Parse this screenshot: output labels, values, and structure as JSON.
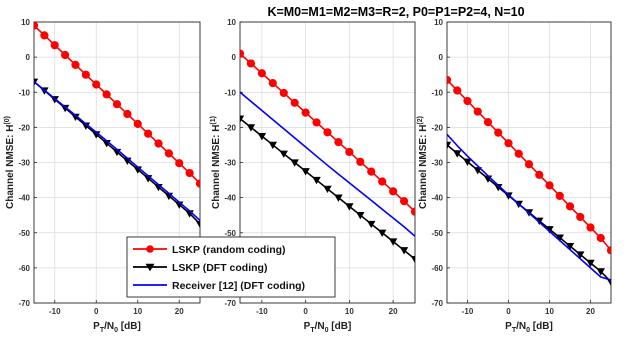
{
  "figure": {
    "title": "K=M0=M1=M2=M3=R=2, P0=P1=P2=4, N=10"
  },
  "legend": [
    {
      "label": "LSKP (random coding)",
      "color": "#ff0000",
      "marker": "circle"
    },
    {
      "label": "LSKP (DFT coding)",
      "color": "#000000",
      "marker": "triangle-down"
    },
    {
      "label": "Receiver [12] (DFT coding)",
      "color": "#0000ff",
      "marker": "none"
    }
  ],
  "chart_data": [
    {
      "type": "line",
      "title": "",
      "xlabel": "P_T/N_0 [dB]",
      "ylabel": "Channel NMSE: H^(0)",
      "ylabel_main": "Channel NMSE: H",
      "ylabel_sup": "(0)",
      "xlabel_main": "P",
      "xlabel_sub1": "T",
      "xlabel_mid": "/N",
      "xlabel_sub2": "0",
      "xlabel_tail": " [dB]",
      "xlim": [
        -15,
        25
      ],
      "ylim": [
        -70,
        10
      ],
      "xticks": [
        -10,
        0,
        10,
        20
      ],
      "yticks": [
        -70,
        -60,
        -50,
        -40,
        -30,
        -20,
        -10,
        0,
        10
      ],
      "grid": true,
      "x": [
        -15,
        -12.5,
        -10,
        -7.5,
        -5,
        -2.5,
        0,
        2.5,
        5,
        7.5,
        10,
        12.5,
        15,
        17.5,
        20,
        22.5,
        25
      ],
      "series": [
        {
          "name": "LSKP (random coding)",
          "color": "#ff0000",
          "marker": "circle",
          "values": [
            9,
            6.2,
            3.4,
            0.6,
            -2.2,
            -5,
            -7.8,
            -10.6,
            -13.4,
            -16.2,
            -19,
            -21.8,
            -24.6,
            -27.4,
            -30.2,
            -33,
            -36
          ]
        },
        {
          "name": "LSKP (DFT coding)",
          "color": "#000000",
          "marker": "triangle-down",
          "values": [
            -7,
            -9.5,
            -12,
            -14.5,
            -17,
            -19.5,
            -22,
            -24.5,
            -27,
            -29.5,
            -32,
            -34.5,
            -37,
            -39.5,
            -42,
            -44.5,
            -47.5
          ]
        },
        {
          "name": "Receiver [12] (DFT coding)",
          "color": "#0000ff",
          "marker": "none",
          "values": [
            -7,
            -9.4,
            -11.8,
            -14.2,
            -16.6,
            -19,
            -21.4,
            -23.8,
            -26.3,
            -28.8,
            -31.3,
            -33.8,
            -36.3,
            -38.8,
            -41.3,
            -43.8,
            -46.5
          ]
        }
      ]
    },
    {
      "type": "line",
      "title": "",
      "xlabel": "P_T/N_0 [dB]",
      "ylabel": "Channel NMSE: H^(1)",
      "ylabel_main": "Channel NMSE: H",
      "ylabel_sup": "(1)",
      "xlabel_main": "P",
      "xlabel_sub1": "T",
      "xlabel_mid": "/N",
      "xlabel_sub2": "0",
      "xlabel_tail": " [dB]",
      "xlim": [
        -15,
        25
      ],
      "ylim": [
        -70,
        10
      ],
      "xticks": [
        -10,
        0,
        10,
        20
      ],
      "yticks": [
        -70,
        -60,
        -50,
        -40,
        -30,
        -20,
        -10,
        0,
        10
      ],
      "grid": true,
      "x": [
        -15,
        -12.5,
        -10,
        -7.5,
        -5,
        -2.5,
        0,
        2.5,
        5,
        7.5,
        10,
        12.5,
        15,
        17.5,
        20,
        22.5,
        25
      ],
      "series": [
        {
          "name": "LSKP (random coding)",
          "color": "#ff0000",
          "marker": "circle",
          "values": [
            1,
            -1.8,
            -4.6,
            -7.4,
            -10.2,
            -13,
            -15.8,
            -18.6,
            -21.4,
            -24.2,
            -27,
            -29.8,
            -32.6,
            -35.4,
            -38.2,
            -41,
            -44
          ]
        },
        {
          "name": "LSKP (DFT coding)",
          "color": "#000000",
          "marker": "triangle-down",
          "values": [
            -17.5,
            -20,
            -22.5,
            -25,
            -27.5,
            -30,
            -32.5,
            -35,
            -37.5,
            -40,
            -42.5,
            -45,
            -47.5,
            -50,
            -52.5,
            -55,
            -57.5
          ]
        },
        {
          "name": "Receiver [12] (DFT coding)",
          "color": "#0000ff",
          "marker": "none",
          "values": [
            -10,
            -12.6,
            -15.2,
            -17.8,
            -20.4,
            -23,
            -25.6,
            -28.2,
            -30.8,
            -33.3,
            -35.8,
            -38.3,
            -40.8,
            -43.3,
            -45.8,
            -48.3,
            -51
          ]
        }
      ]
    },
    {
      "type": "line",
      "title": "",
      "xlabel": "P_T/N_0 [dB]",
      "ylabel": "Channel NMSE: H^(2)",
      "ylabel_main": "Channel NMSE: H",
      "ylabel_sup": "(2)",
      "xlabel_main": "P",
      "xlabel_sub1": "T",
      "xlabel_mid": "/N",
      "xlabel_sub2": "0",
      "xlabel_tail": " [dB]",
      "xlim": [
        -15,
        25
      ],
      "ylim": [
        -70,
        10
      ],
      "xticks": [
        -10,
        0,
        10,
        20
      ],
      "yticks": [
        -70,
        -60,
        -50,
        -40,
        -30,
        -20,
        -10,
        0,
        10
      ],
      "grid": true,
      "x": [
        -15,
        -12.5,
        -10,
        -7.5,
        -5,
        -2.5,
        0,
        2.5,
        5,
        7.5,
        10,
        12.5,
        15,
        17.5,
        20,
        22.5,
        25
      ],
      "series": [
        {
          "name": "LSKP (random coding)",
          "color": "#ff0000",
          "marker": "circle",
          "values": [
            -6.5,
            -9.5,
            -12.5,
            -15.5,
            -18.5,
            -21.5,
            -24.5,
            -27.5,
            -30.5,
            -33.5,
            -36.5,
            -39.5,
            -42.5,
            -45.5,
            -48.5,
            -51.5,
            -55
          ]
        },
        {
          "name": "LSKP (DFT coding)",
          "color": "#000000",
          "marker": "triangle-down",
          "values": [
            -25,
            -27.4,
            -29.8,
            -32.2,
            -34.6,
            -37,
            -39.4,
            -41.8,
            -44.2,
            -46.6,
            -49,
            -51.4,
            -53.8,
            -56.2,
            -58.6,
            -61,
            -64
          ]
        },
        {
          "name": "Receiver [12] (DFT coding)",
          "color": "#0000ff",
          "marker": "none",
          "values": [
            -22,
            -25.2,
            -28.2,
            -31,
            -33.8,
            -36.5,
            -39.2,
            -41.8,
            -44.4,
            -47,
            -49.6,
            -52.2,
            -54.8,
            -57.4,
            -60,
            -62.6,
            -63.5
          ]
        }
      ]
    }
  ]
}
